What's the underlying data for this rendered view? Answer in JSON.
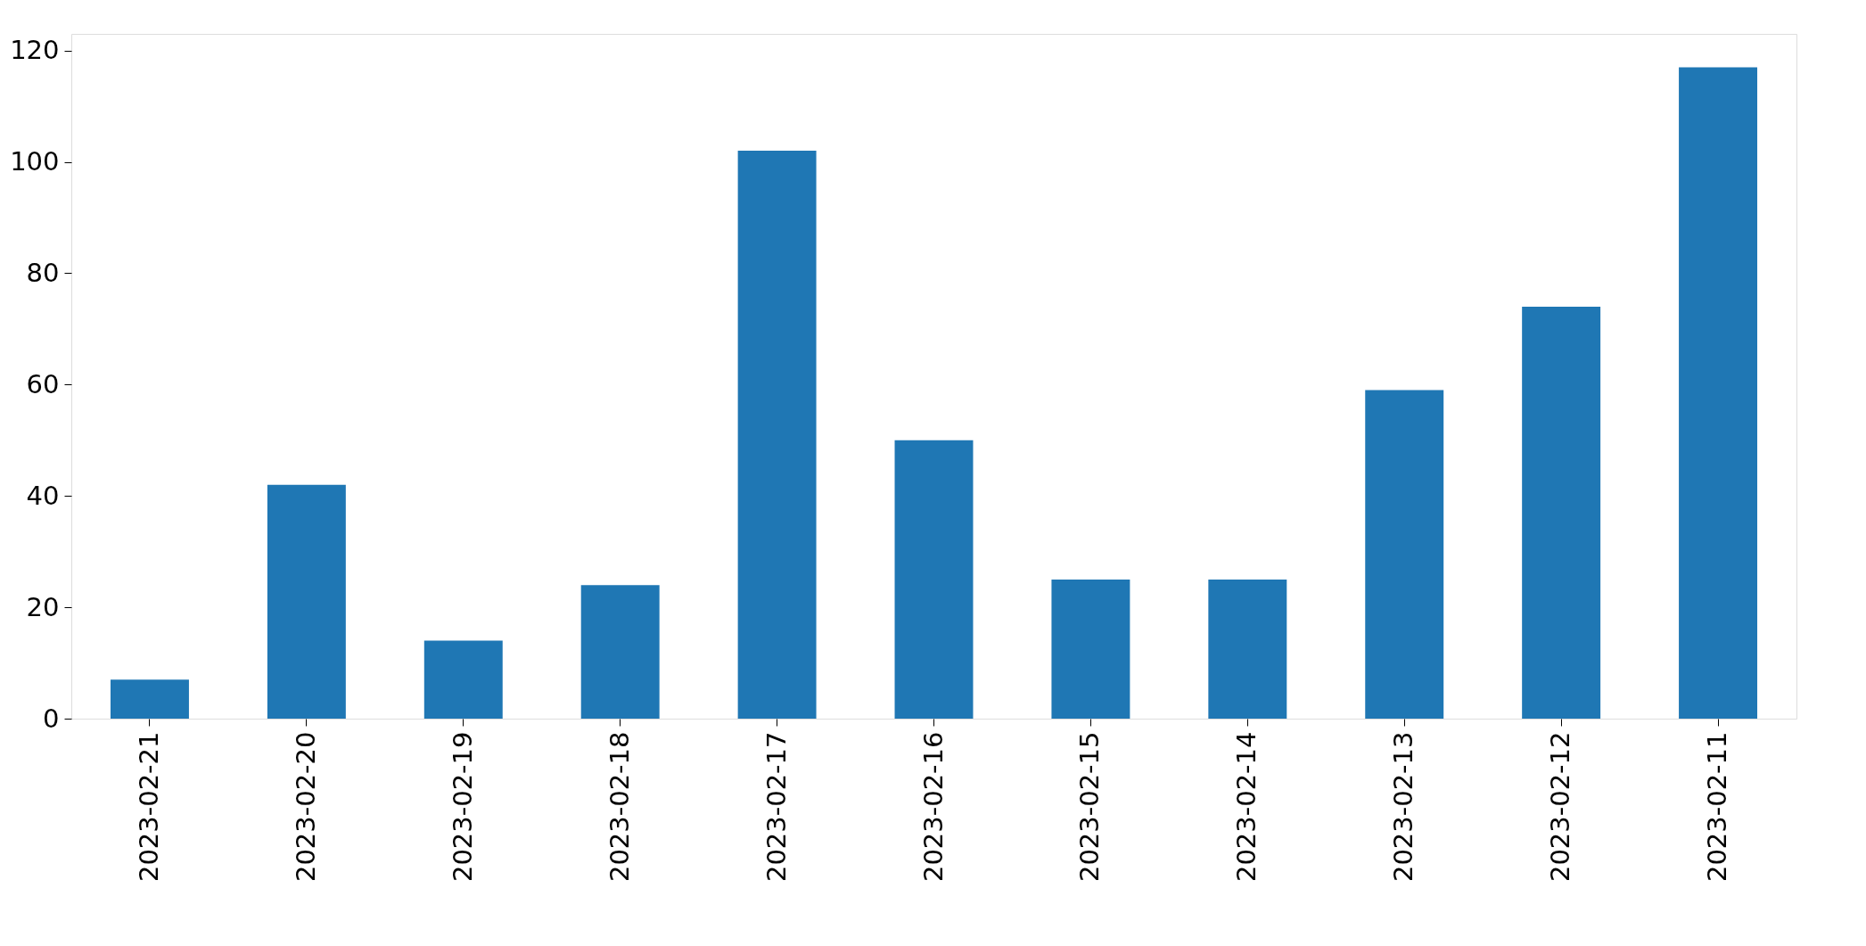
{
  "chart_data": {
    "type": "bar",
    "categories": [
      "2023-02-21",
      "2023-02-20",
      "2023-02-19",
      "2023-02-18",
      "2023-02-17",
      "2023-02-16",
      "2023-02-15",
      "2023-02-14",
      "2023-02-13",
      "2023-02-12",
      "2023-02-11"
    ],
    "values": [
      7,
      42,
      14,
      24,
      102,
      50,
      25,
      25,
      59,
      74,
      117
    ],
    "color": "#1f77b4",
    "ylim": [
      0,
      123
    ],
    "yticks": [
      0,
      20,
      40,
      60,
      80,
      100,
      120
    ],
    "grid": false
  }
}
